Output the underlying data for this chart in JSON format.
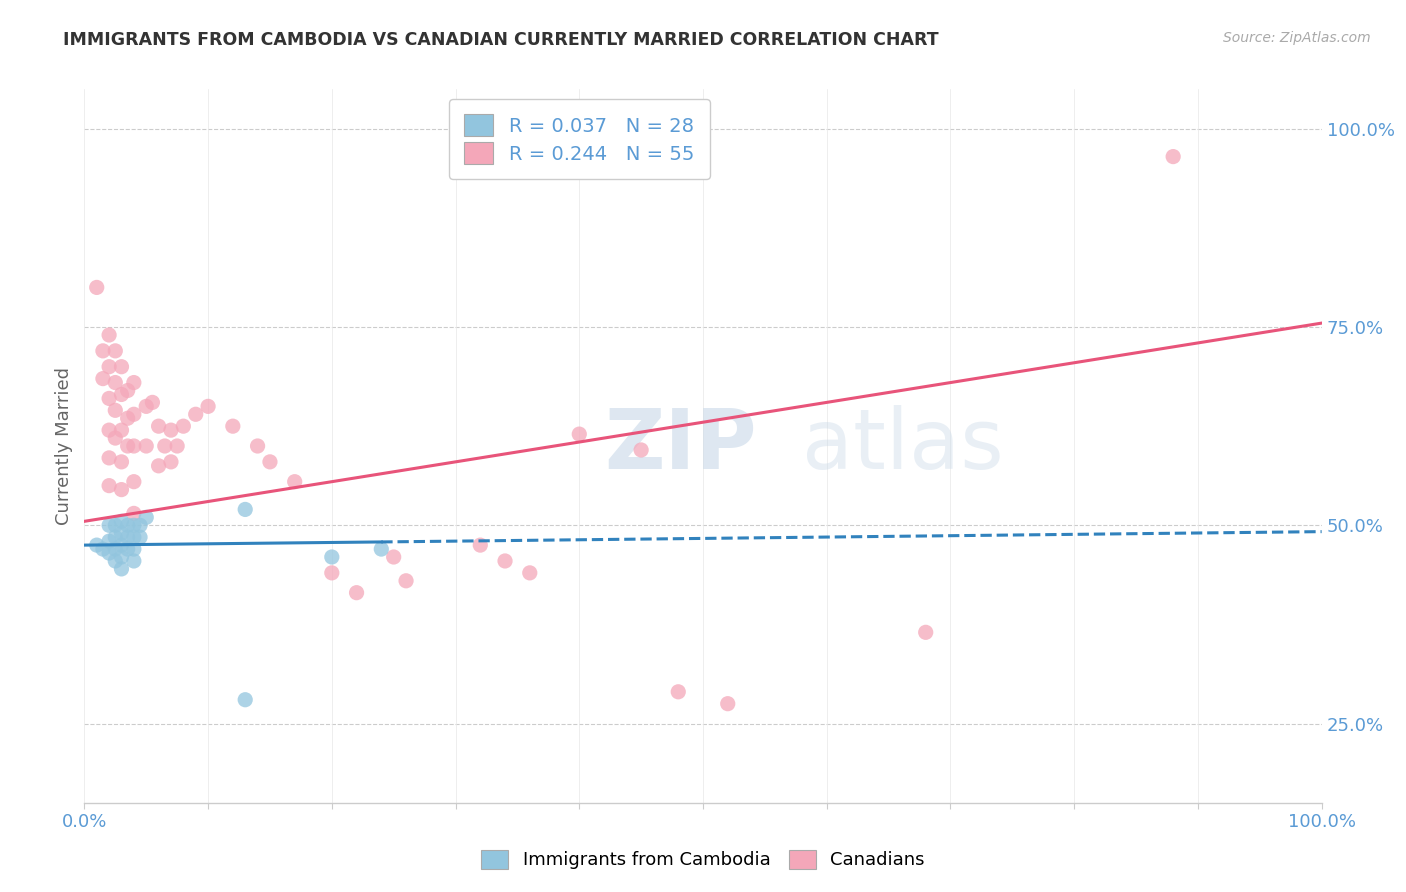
{
  "title": "IMMIGRANTS FROM CAMBODIA VS CANADIAN CURRENTLY MARRIED CORRELATION CHART",
  "source_text": "Source: ZipAtlas.com",
  "ylabel": "Currently Married",
  "legend_line1": "R = 0.037   N = 28",
  "legend_line2": "R = 0.244   N = 55",
  "legend_label1": "Immigrants from Cambodia",
  "legend_label2": "Canadians",
  "blue_color": "#92c5de",
  "pink_color": "#f4a7b9",
  "blue_line_color": "#3182bd",
  "pink_line_color": "#e8547a",
  "title_color": "#333333",
  "axis_label_color": "#5b9bd5",
  "blue_scatter": [
    [
      0.01,
      0.475
    ],
    [
      0.015,
      0.47
    ],
    [
      0.02,
      0.5
    ],
    [
      0.02,
      0.48
    ],
    [
      0.02,
      0.465
    ],
    [
      0.025,
      0.5
    ],
    [
      0.025,
      0.485
    ],
    [
      0.025,
      0.47
    ],
    [
      0.025,
      0.455
    ],
    [
      0.03,
      0.505
    ],
    [
      0.03,
      0.49
    ],
    [
      0.03,
      0.475
    ],
    [
      0.03,
      0.46
    ],
    [
      0.03,
      0.445
    ],
    [
      0.035,
      0.5
    ],
    [
      0.035,
      0.485
    ],
    [
      0.035,
      0.47
    ],
    [
      0.04,
      0.5
    ],
    [
      0.04,
      0.485
    ],
    [
      0.04,
      0.47
    ],
    [
      0.04,
      0.455
    ],
    [
      0.045,
      0.5
    ],
    [
      0.045,
      0.485
    ],
    [
      0.05,
      0.51
    ],
    [
      0.13,
      0.52
    ],
    [
      0.2,
      0.46
    ],
    [
      0.24,
      0.47
    ],
    [
      0.13,
      0.28
    ]
  ],
  "pink_scatter": [
    [
      0.01,
      0.8
    ],
    [
      0.015,
      0.72
    ],
    [
      0.015,
      0.685
    ],
    [
      0.02,
      0.74
    ],
    [
      0.02,
      0.7
    ],
    [
      0.02,
      0.66
    ],
    [
      0.02,
      0.62
    ],
    [
      0.02,
      0.585
    ],
    [
      0.02,
      0.55
    ],
    [
      0.025,
      0.72
    ],
    [
      0.025,
      0.68
    ],
    [
      0.025,
      0.645
    ],
    [
      0.025,
      0.61
    ],
    [
      0.03,
      0.7
    ],
    [
      0.03,
      0.665
    ],
    [
      0.03,
      0.62
    ],
    [
      0.03,
      0.58
    ],
    [
      0.03,
      0.545
    ],
    [
      0.035,
      0.67
    ],
    [
      0.035,
      0.635
    ],
    [
      0.035,
      0.6
    ],
    [
      0.04,
      0.68
    ],
    [
      0.04,
      0.64
    ],
    [
      0.04,
      0.6
    ],
    [
      0.04,
      0.555
    ],
    [
      0.04,
      0.515
    ],
    [
      0.05,
      0.65
    ],
    [
      0.05,
      0.6
    ],
    [
      0.055,
      0.655
    ],
    [
      0.06,
      0.625
    ],
    [
      0.06,
      0.575
    ],
    [
      0.065,
      0.6
    ],
    [
      0.07,
      0.62
    ],
    [
      0.07,
      0.58
    ],
    [
      0.075,
      0.6
    ],
    [
      0.08,
      0.625
    ],
    [
      0.09,
      0.64
    ],
    [
      0.1,
      0.65
    ],
    [
      0.12,
      0.625
    ],
    [
      0.14,
      0.6
    ],
    [
      0.15,
      0.58
    ],
    [
      0.17,
      0.555
    ],
    [
      0.2,
      0.44
    ],
    [
      0.22,
      0.415
    ],
    [
      0.25,
      0.46
    ],
    [
      0.26,
      0.43
    ],
    [
      0.32,
      0.475
    ],
    [
      0.34,
      0.455
    ],
    [
      0.36,
      0.44
    ],
    [
      0.4,
      0.615
    ],
    [
      0.45,
      0.595
    ],
    [
      0.48,
      0.29
    ],
    [
      0.52,
      0.275
    ],
    [
      0.68,
      0.365
    ],
    [
      0.88,
      0.965
    ]
  ],
  "blue_solid_trendline": [
    [
      0.0,
      0.475
    ],
    [
      0.24,
      0.479
    ]
  ],
  "blue_dashed_trendline": [
    [
      0.24,
      0.479
    ],
    [
      1.0,
      0.492
    ]
  ],
  "pink_trendline": [
    [
      0.0,
      0.505
    ],
    [
      1.0,
      0.755
    ]
  ],
  "xlim": [
    0.0,
    1.0
  ],
  "ylim": [
    0.15,
    1.05
  ],
  "figsize": [
    14.06,
    8.92
  ],
  "dpi": 100,
  "right_yticks": [
    0.25,
    0.5,
    0.75,
    1.0
  ],
  "right_ylabels": [
    "25.0%",
    "50.0%",
    "75.0%",
    "100.0%"
  ]
}
